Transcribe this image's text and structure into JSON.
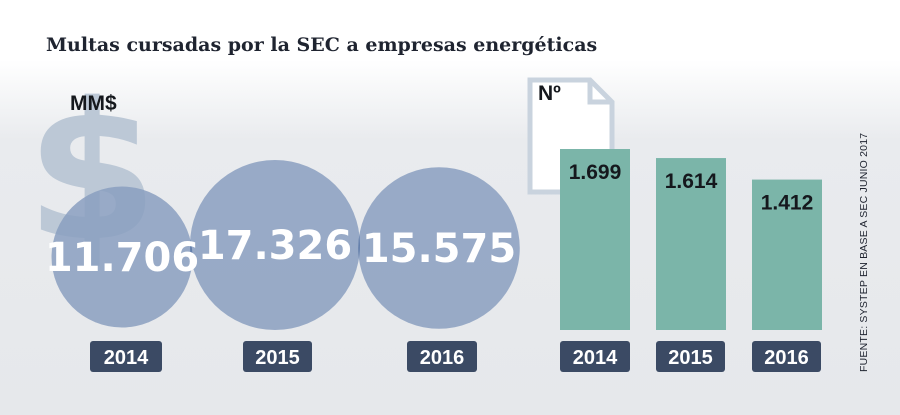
{
  "title": "Multas cursadas por la SEC a empresas energéticas",
  "source": "FUENTE: SYSTEP EN BASE A SEC JUNIO 2017",
  "colors": {
    "bubble": "#8a9fc0",
    "bubble_overlap": "#647fab",
    "bar": "#7bb5a9",
    "year_box": "#3b4a64",
    "dollar": "#bcc8d6"
  },
  "icons": {
    "dollar": "dollar-sign-icon",
    "document": "document-icon"
  },
  "chart_data": [
    {
      "type": "bubble",
      "unit": "MM$",
      "categories": [
        "2014",
        "2015",
        "2016"
      ],
      "values": [
        11706,
        17326,
        15575
      ],
      "value_labels": [
        "11.706",
        "17.326",
        "15.575"
      ]
    },
    {
      "type": "bar",
      "unit": "Nº",
      "categories": [
        "2014",
        "2015",
        "2016"
      ],
      "values": [
        1699,
        1614,
        1412
      ],
      "value_labels": [
        "1.699",
        "1.614",
        "1.412"
      ],
      "ylim": [
        0,
        1699
      ]
    }
  ]
}
